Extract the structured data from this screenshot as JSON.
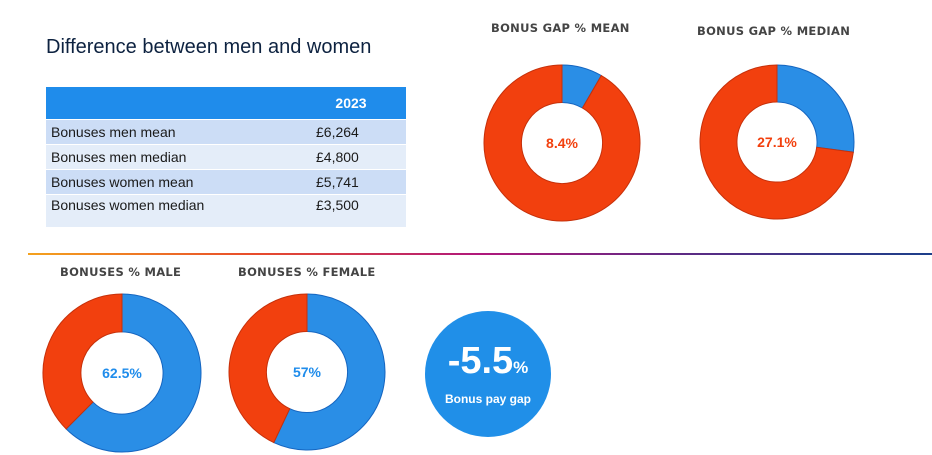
{
  "title": "Difference between men and women",
  "table": {
    "header": [
      "",
      "2023"
    ],
    "rows": [
      [
        "Bonuses men mean",
        "£6,264"
      ],
      [
        "Bonuses men median",
        "£4,800"
      ],
      [
        "Bonuses women mean",
        "£5,741"
      ],
      [
        "Bonuses women median",
        "£3,500"
      ]
    ]
  },
  "chart_data": [
    {
      "type": "pie",
      "title": "BONUS GAP % MEAN",
      "center_label": "8.4%",
      "values": [
        8.4,
        91.6
      ],
      "colors": [
        "#2a8ee6",
        "#f2400e"
      ],
      "label_color": "#f2400e"
    },
    {
      "type": "pie",
      "title": "BONUS GAP % MEDIAN",
      "center_label": "27.1%",
      "values": [
        27.1,
        72.9
      ],
      "colors": [
        "#2a8ee6",
        "#f2400e"
      ],
      "label_color": "#f2400e"
    },
    {
      "type": "pie",
      "title": "BONUSES % MALE",
      "center_label": "62.5%",
      "values": [
        62.5,
        37.5
      ],
      "colors": [
        "#2a8ee6",
        "#f2400e"
      ],
      "label_color": "#1f8ceb"
    },
    {
      "type": "pie",
      "title": "BONUSES % FEMALE",
      "center_label": "57%",
      "values": [
        57,
        43
      ],
      "colors": [
        "#2a8ee6",
        "#f2400e"
      ],
      "label_color": "#1f8ceb"
    }
  ],
  "pay_gap": {
    "number": "-5.5",
    "unit": "%",
    "caption": "Bonus pay gap"
  }
}
